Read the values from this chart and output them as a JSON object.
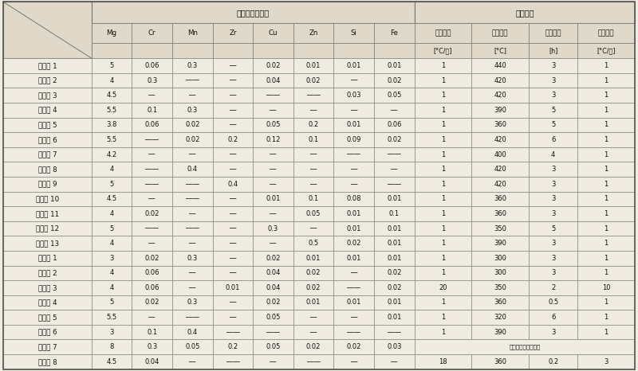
{
  "title_left": "组成（质量％）",
  "title_right": "堆叠退火",
  "col_header_row1": [
    "Mg",
    "Cr",
    "Mn",
    "Zr",
    "Cu",
    "Zn",
    "Si",
    "Fe",
    "升温速度",
    "保持温度",
    "保持时间",
    "降温速度"
  ],
  "col_header_row2": [
    "",
    "",
    "",
    "",
    "",
    "",
    "",
    "",
    "[°C/分]",
    "[°C]",
    "[h]",
    "[°C/分]"
  ],
  "rows": [
    [
      "实施例 1",
      "5",
      "0.06",
      "0.3",
      "―",
      "0.02",
      "0.01",
      "0.01",
      "0.01",
      "1",
      "440",
      "3",
      "1"
    ],
    [
      "实施例 2",
      "4",
      "0.3",
      "――",
      "―",
      "0.04",
      "0.02",
      "―",
      "0.02",
      "1",
      "420",
      "3",
      "1"
    ],
    [
      "实施例 3",
      "4.5",
      "―",
      "―",
      "―",
      "――",
      "――",
      "0.03",
      "0.05",
      "1",
      "420",
      "3",
      "1"
    ],
    [
      "实施例 4",
      "5.5",
      "0.1",
      "0.3",
      "―",
      "―",
      "―",
      "―",
      "―",
      "1",
      "390",
      "5",
      "1"
    ],
    [
      "实施例 5",
      "3.8",
      "0.06",
      "0.02",
      "―",
      "0.05",
      "0.2",
      "0.01",
      "0.06",
      "1",
      "360",
      "5",
      "1"
    ],
    [
      "实施例 6",
      "5.5",
      "――",
      "0.02",
      "0.2",
      "0.12",
      "0.1",
      "0.09",
      "0.02",
      "1",
      "420",
      "6",
      "1"
    ],
    [
      "实施例 7",
      "4.2",
      "―",
      "―",
      "―",
      "―",
      "―",
      "――",
      "――",
      "1",
      "400",
      "4",
      "1"
    ],
    [
      "实施例 8",
      "4",
      "――",
      "0.4",
      "―",
      "―",
      "―",
      "―",
      "―",
      "1",
      "420",
      "3",
      "1"
    ],
    [
      "实施例 9",
      "5",
      "――",
      "――",
      "0.4",
      "―",
      "―",
      "―",
      "――",
      "1",
      "420",
      "3",
      "1"
    ],
    [
      "实施例 10",
      "4.5",
      "―",
      "――",
      "―",
      "0.01",
      "0.1",
      "0.08",
      "0.01",
      "1",
      "360",
      "3",
      "1"
    ],
    [
      "实施例 11",
      "4",
      "0.02",
      "―",
      "―",
      "―",
      "0.05",
      "0.01",
      "0.1",
      "1",
      "360",
      "3",
      "1"
    ],
    [
      "实施例 12",
      "5",
      "――",
      "――",
      "―",
      "0.3",
      "―",
      "0.01",
      "0.01",
      "1",
      "350",
      "5",
      "1"
    ],
    [
      "实施例 13",
      "4",
      "―",
      "―",
      "―",
      "―",
      "0.5",
      "0.02",
      "0.01",
      "1",
      "390",
      "3",
      "1"
    ],
    [
      "比较例 1",
      "3",
      "0.02",
      "0.3",
      "―",
      "0.02",
      "0.01",
      "0.01",
      "0.01",
      "1",
      "300",
      "3",
      "1"
    ],
    [
      "比较例 2",
      "4",
      "0.06",
      "―",
      "―",
      "0.04",
      "0.02",
      "―",
      "0.02",
      "1",
      "300",
      "3",
      "1"
    ],
    [
      "比较例 3",
      "4",
      "0.06",
      "―",
      "0.01",
      "0.04",
      "0.02",
      "――",
      "0.02",
      "20",
      "350",
      "2",
      "10"
    ],
    [
      "比较例 4",
      "5",
      "0.02",
      "0.3",
      "―",
      "0.02",
      "0.01",
      "0.01",
      "0.01",
      "1",
      "360",
      "0.5",
      "1"
    ],
    [
      "比较例 5",
      "5.5",
      "―",
      "――",
      "―",
      "0.05",
      "―",
      "―",
      "0.01",
      "1",
      "320",
      "6",
      "1"
    ],
    [
      "比较例 6",
      "3",
      "0.1",
      "0.4",
      "――",
      "――",
      "―",
      "――",
      "――",
      "1",
      "390",
      "3",
      "1"
    ],
    [
      "比较例 7",
      "8",
      "0.3",
      "0.05",
      "0.2",
      "0.05",
      "0.02",
      "0.02",
      "0.03",
      "基板化実施不能判定",
      "",
      "",
      ""
    ],
    [
      "比较例 8",
      "4.5",
      "0.04",
      "―",
      "――",
      "―",
      "――",
      "―",
      "―",
      "18",
      "360",
      "0.2",
      "3"
    ]
  ],
  "bg_color": "#f0ebe0",
  "header_bg": "#e0d8c8",
  "border_color": "#777777",
  "text_color": "#111111"
}
